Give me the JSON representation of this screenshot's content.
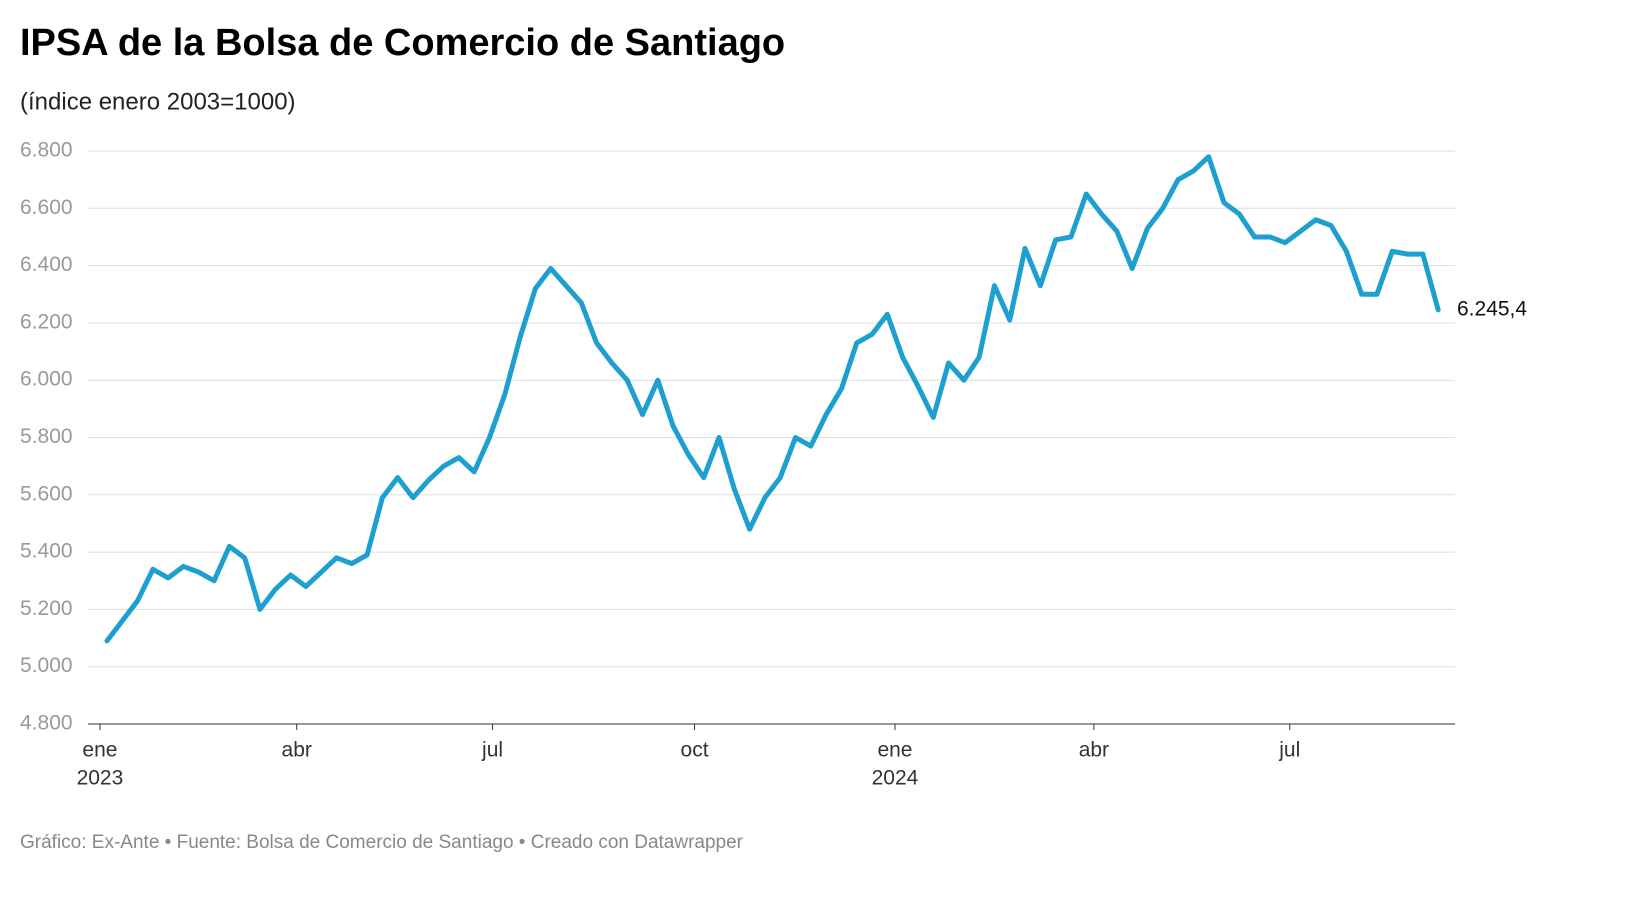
{
  "chart_data": {
    "type": "line",
    "title": "IPSA de la Bolsa de Comercio de Santiago",
    "subtitle": "(índice enero 2003=1000)",
    "footer": "Gráfico: Ex-Ante • Fuente: Bolsa de Comercio de Santiago • Creado con Datawrapper",
    "color": "#1d9fd0",
    "grid": true,
    "values": [
      5090,
      5160,
      5230,
      5340,
      5310,
      5350,
      5330,
      5300,
      5420,
      5380,
      5200,
      5270,
      5320,
      5280,
      5330,
      5380,
      5360,
      5390,
      5590,
      5660,
      5590,
      5650,
      5700,
      5730,
      5680,
      5800,
      5950,
      6150,
      6320,
      6390,
      6330,
      6270,
      6130,
      6060,
      6000,
      5880,
      6000,
      5840,
      5740,
      5660,
      5800,
      5620,
      5480,
      5590,
      5660,
      5800,
      5770,
      5880,
      5970,
      6130,
      6160,
      6230,
      6080,
      5980,
      5870,
      6060,
      6000,
      6080,
      6330,
      6210,
      6460,
      6330,
      6490,
      6500,
      6650,
      6580,
      6520,
      6390,
      6530,
      6600,
      6700,
      6730,
      6780,
      6620,
      6580,
      6500,
      6500,
      6480,
      6520,
      6560,
      6540,
      6450,
      6300,
      6300,
      6450,
      6440,
      6440,
      6245.4
    ],
    "end_label": "6.245,4",
    "xlim": [
      -1.24,
      88.1
    ],
    "xticks": [
      {
        "value": -0.46,
        "label": "ene",
        "year": "2023"
      },
      {
        "value": 12.4,
        "label": "abr"
      },
      {
        "value": 25.2,
        "label": "jul"
      },
      {
        "value": 38.4,
        "label": "oct"
      },
      {
        "value": 51.5,
        "label": "ene",
        "year": "2024"
      },
      {
        "value": 64.5,
        "label": "abr"
      },
      {
        "value": 77.3,
        "label": "jul"
      }
    ],
    "ylim": [
      4800,
      6800
    ],
    "yticks": [
      {
        "value": 4800,
        "label": "4.800"
      },
      {
        "value": 5000,
        "label": "5.000"
      },
      {
        "value": 5200,
        "label": "5.200"
      },
      {
        "value": 5400,
        "label": "5.400"
      },
      {
        "value": 5600,
        "label": "5.600"
      },
      {
        "value": 5800,
        "label": "5.800"
      },
      {
        "value": 6000,
        "label": "6.000"
      },
      {
        "value": 6200,
        "label": "6.200"
      },
      {
        "value": 6400,
        "label": "6.400"
      },
      {
        "value": 6600,
        "label": "6.600"
      },
      {
        "value": 6800,
        "label": "6.800"
      }
    ]
  }
}
